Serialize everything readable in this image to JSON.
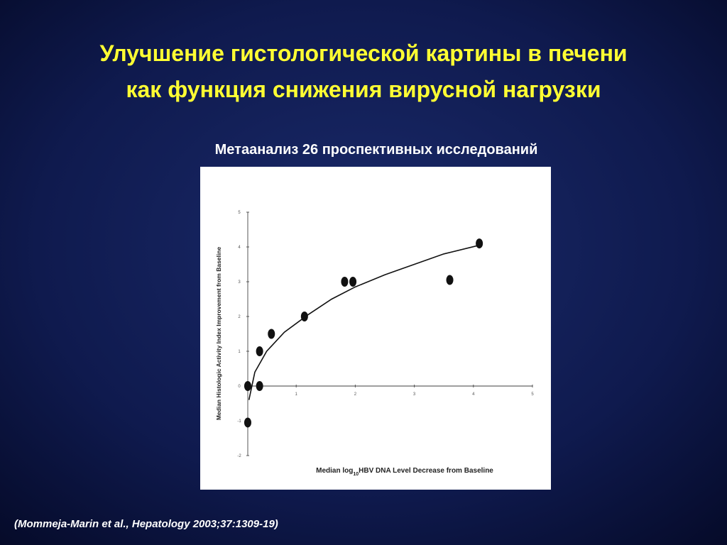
{
  "chart_data": {
    "type": "scatter",
    "title": [
      "Улучшение гистологической картины в печени",
      "как функция снижения вирусной нагрузки"
    ],
    "subtitle": "Метаанализ 26 проспективных исследований",
    "annotation": "(Mommeja-Marin et al., Hepatology 2003;37:1309-19)",
    "ylabel": "Median Histologic Activity Index Improvement from Baseline",
    "xlabel": [
      "Median log",
      "10",
      "HBV DNA Level Decrease from Baseline"
    ],
    "xlim": [
      0,
      5
    ],
    "xticks": [
      1,
      2,
      3,
      4,
      5
    ],
    "ylim": [
      -2,
      5
    ],
    "yticks": [
      -2,
      -1,
      0,
      1,
      2,
      3,
      4,
      5
    ],
    "series": [
      {
        "color": "#111111",
        "style": "points",
        "x": [
          0.18,
          0.18,
          0.38,
          0.38,
          0.58,
          1.14,
          1.82,
          1.96,
          3.6,
          4.1
        ],
        "values": [
          0,
          -1.05,
          0,
          1.0,
          1.5,
          2.0,
          3.0,
          3.0,
          3.05,
          4.1
        ]
      },
      {
        "color": "#111111",
        "style": "line",
        "x": [
          0.2,
          0.3,
          0.5,
          0.8,
          1.2,
          1.6,
          2,
          2.5,
          3,
          3.5,
          4.1
        ],
        "values": [
          -0.4,
          0.4,
          1.0,
          1.55,
          2.05,
          2.5,
          2.85,
          3.2,
          3.5,
          3.8,
          4.05
        ]
      }
    ]
  }
}
